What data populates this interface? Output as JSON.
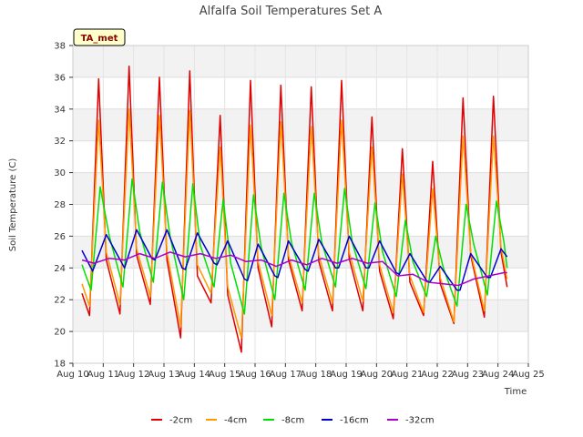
{
  "chart_data": {
    "type": "line",
    "title": "Alfalfa Soil Temperatures Set A",
    "xlabel": "Time",
    "ylabel": "Soil Temperature (C)",
    "tag": "TA_met",
    "xlim": [
      10,
      25
    ],
    "ylim": [
      18,
      38
    ],
    "x_ticks": [
      "Aug 10",
      "Aug 11",
      "Aug 12",
      "Aug 13",
      "Aug 14",
      "Aug 15",
      "Aug 16",
      "Aug 17",
      "Aug 18",
      "Aug 19",
      "Aug 20",
      "Aug 21",
      "Aug 22",
      "Aug 23",
      "Aug 24",
      "Aug 25"
    ],
    "y_ticks": [
      18,
      20,
      22,
      24,
      26,
      28,
      30,
      32,
      34,
      36,
      38
    ],
    "legend_position": "bottom",
    "grid": true,
    "series": [
      {
        "name": "-2cm",
        "color": "#e00000",
        "x": [
          10.3,
          10.55,
          10.85,
          11.1,
          11.55,
          11.85,
          12.1,
          12.55,
          12.85,
          13.1,
          13.55,
          13.85,
          14.1,
          14.55,
          14.85,
          15.1,
          15.55,
          15.85,
          16.1,
          16.55,
          16.85,
          17.1,
          17.55,
          17.85,
          18.1,
          18.55,
          18.85,
          19.1,
          19.55,
          19.85,
          20.1,
          20.55,
          20.85,
          21.1,
          21.55,
          21.85,
          22.1,
          22.55,
          22.85,
          23.1,
          23.55,
          23.85,
          24.1,
          24.3
        ],
        "y": [
          22.4,
          21.0,
          35.9,
          24.5,
          21.1,
          36.7,
          24.8,
          21.7,
          36.0,
          24.5,
          19.6,
          36.4,
          23.5,
          21.8,
          33.6,
          22.3,
          18.7,
          35.8,
          24.0,
          20.3,
          35.5,
          24.5,
          21.3,
          35.4,
          24.4,
          21.3,
          35.8,
          24.6,
          21.3,
          33.5,
          23.8,
          20.8,
          31.5,
          23.1,
          21.0,
          30.7,
          23.0,
          20.5,
          34.7,
          24.8,
          20.9,
          34.8,
          25.0,
          22.8
        ]
      },
      {
        "name": "-4cm",
        "color": "#ff9900",
        "x": [
          10.3,
          10.55,
          10.85,
          11.1,
          11.55,
          11.85,
          12.1,
          12.55,
          12.85,
          13.1,
          13.55,
          13.85,
          14.1,
          14.55,
          14.85,
          15.1,
          15.55,
          15.85,
          16.1,
          16.55,
          16.85,
          17.1,
          17.55,
          17.85,
          18.1,
          18.55,
          18.85,
          19.1,
          19.55,
          19.85,
          20.1,
          20.55,
          20.85,
          21.1,
          21.55,
          21.85,
          22.1,
          22.55,
          22.85,
          23.1,
          23.55,
          23.85,
          24.1,
          24.3
        ],
        "y": [
          23.0,
          21.6,
          33.3,
          25.0,
          21.7,
          34.0,
          25.2,
          22.2,
          33.6,
          25.0,
          20.3,
          33.9,
          24.2,
          22.4,
          31.6,
          22.8,
          19.6,
          33.0,
          24.4,
          21.0,
          33.2,
          24.8,
          21.8,
          32.9,
          24.8,
          21.8,
          33.3,
          25.0,
          21.9,
          31.6,
          24.2,
          21.2,
          29.9,
          23.5,
          21.2,
          29.0,
          23.4,
          20.6,
          32.3,
          25.0,
          21.3,
          32.3,
          25.3,
          23.3
        ]
      },
      {
        "name": "-8cm",
        "color": "#00e000",
        "x": [
          10.3,
          10.6,
          10.9,
          11.2,
          11.65,
          11.95,
          12.2,
          12.65,
          12.95,
          13.2,
          13.65,
          13.95,
          14.2,
          14.65,
          14.95,
          15.2,
          15.65,
          15.95,
          16.2,
          16.65,
          16.95,
          17.2,
          17.65,
          17.95,
          18.2,
          18.65,
          18.95,
          19.2,
          19.65,
          19.95,
          20.2,
          20.65,
          20.95,
          21.2,
          21.65,
          21.95,
          22.2,
          22.65,
          22.95,
          23.2,
          23.65,
          23.95,
          24.2,
          24.3
        ],
        "y": [
          24.2,
          22.6,
          29.1,
          26.0,
          22.8,
          29.6,
          26.3,
          23.1,
          29.4,
          26.0,
          22.0,
          29.3,
          25.4,
          22.8,
          28.3,
          24.3,
          21.1,
          28.6,
          25.3,
          22.0,
          28.7,
          25.6,
          22.6,
          28.7,
          25.6,
          22.8,
          29.0,
          25.6,
          22.7,
          28.1,
          25.0,
          22.2,
          27.0,
          24.4,
          22.2,
          26.0,
          24.0,
          21.6,
          28.0,
          25.5,
          22.3,
          28.2,
          25.6,
          24.0
        ]
      },
      {
        "name": "-16cm",
        "color": "#0000cc",
        "x": [
          10.3,
          10.65,
          11.1,
          11.7,
          12.1,
          12.6,
          12.7,
          13.1,
          13.6,
          13.7,
          14.1,
          14.65,
          14.75,
          15.1,
          15.65,
          15.75,
          16.1,
          16.65,
          16.75,
          17.1,
          17.65,
          17.75,
          18.1,
          18.65,
          18.75,
          19.1,
          19.65,
          19.75,
          20.1,
          20.65,
          20.75,
          21.1,
          21.65,
          21.75,
          22.1,
          22.65,
          22.75,
          23.1,
          23.65,
          23.75,
          24.1,
          24.3
        ],
        "y": [
          25.1,
          23.8,
          26.1,
          24.0,
          26.4,
          24.6,
          24.5,
          26.4,
          24.0,
          23.9,
          26.2,
          24.3,
          24.2,
          25.7,
          23.3,
          23.2,
          25.5,
          23.5,
          23.4,
          25.7,
          23.9,
          23.8,
          25.8,
          24.0,
          24.0,
          26.0,
          24.0,
          24.0,
          25.7,
          23.7,
          23.6,
          24.9,
          23.2,
          23.1,
          24.1,
          22.6,
          22.6,
          24.9,
          23.4,
          23.4,
          25.2,
          24.7
        ]
      },
      {
        "name": "-32cm",
        "color": "#aa00cc",
        "x": [
          10.3,
          10.7,
          11.2,
          11.7,
          12.2,
          12.7,
          13.2,
          13.7,
          14.2,
          14.7,
          15.2,
          15.7,
          16.2,
          16.7,
          17.2,
          17.7,
          18.2,
          18.7,
          19.2,
          19.7,
          20.2,
          20.7,
          21.2,
          21.7,
          22.2,
          22.7,
          23.2,
          23.7,
          24.2,
          24.3
        ],
        "y": [
          24.5,
          24.3,
          24.6,
          24.5,
          24.9,
          24.6,
          25.0,
          24.7,
          24.9,
          24.6,
          24.8,
          24.4,
          24.5,
          24.1,
          24.5,
          24.2,
          24.6,
          24.3,
          24.6,
          24.3,
          24.4,
          23.5,
          23.6,
          23.1,
          23.0,
          22.9,
          23.3,
          23.5,
          23.7,
          23.7
        ]
      }
    ]
  }
}
